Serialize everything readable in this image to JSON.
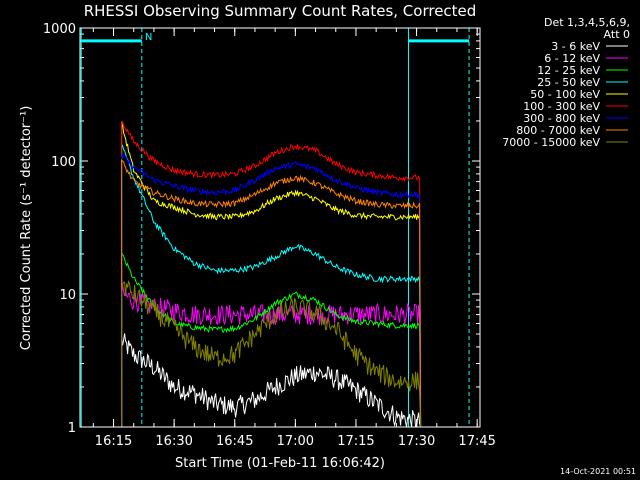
{
  "chart_data": {
    "type": "line",
    "title": "RHESSI Observing Summary Count Rates, Corrected",
    "xlabel": "Start Time (01-Feb-11 16:06:42)",
    "ylabel": "Corrected Count Rate (s⁻¹ detector⁻¹)",
    "yscale": "log",
    "ylim": [
      1,
      1000
    ],
    "xlim_minutes_after_start": [
      0,
      99
    ],
    "x_tick_labels": [
      "16:15",
      "16:30",
      "16:45",
      "17:00",
      "17:15",
      "17:30",
      "17:45"
    ],
    "y_tick_labels": [
      "1",
      "10",
      "100",
      "1000"
    ],
    "legend_header": [
      "Det 1,3,4,5,6,9,",
      "Att 0"
    ],
    "legend_placement": "right, outside plot",
    "data_start_time": "16:17",
    "data_end_time": "17:31",
    "markers": {
      "night_label": "N",
      "vertical_lines": [
        "16:07",
        "16:22",
        "17:28",
        "17:43"
      ],
      "horizontal_bars": [
        {
          "from": "16:07",
          "to": "16:22",
          "y": 800
        },
        {
          "from": "17:28",
          "to": "17:43",
          "y": 800
        }
      ]
    },
    "times": [
      "16:17",
      "16:20",
      "16:25",
      "16:30",
      "16:35",
      "16:40",
      "16:45",
      "16:50",
      "16:55",
      "17:00",
      "17:05",
      "17:10",
      "17:15",
      "17:20",
      "17:25",
      "17:30"
    ],
    "series": [
      {
        "name": "3 - 6 keV",
        "color": "#ffffff",
        "values": [
          4.5,
          3.5,
          2.8,
          2.0,
          1.8,
          1.5,
          1.4,
          1.6,
          2.0,
          2.4,
          2.6,
          2.3,
          1.9,
          1.5,
          1.2,
          1.1
        ]
      },
      {
        "name": "6 - 12 keV",
        "color": "#ff00ff",
        "values": [
          10,
          9,
          8,
          7.5,
          7,
          7,
          7,
          7,
          7,
          7,
          7,
          7,
          7,
          7,
          7,
          7
        ]
      },
      {
        "name": "12 - 25 keV",
        "color": "#00ff00",
        "values": [
          20,
          13,
          8,
          6,
          5.6,
          5.4,
          5.5,
          6.5,
          8.5,
          10,
          9,
          7,
          6.2,
          6,
          5.8,
          5.8
        ]
      },
      {
        "name": "25 - 50 keV",
        "color": "#00ffff",
        "values": [
          130,
          75,
          35,
          22,
          17,
          15,
          15,
          16,
          19,
          23,
          20,
          16,
          14,
          13,
          13,
          13
        ]
      },
      {
        "name": "50 - 100 keV",
        "color": "#ffff00",
        "values": [
          190,
          85,
          50,
          45,
          40,
          38,
          38,
          42,
          52,
          58,
          52,
          43,
          39,
          38,
          38,
          38
        ]
      },
      {
        "name": "100 - 300 keV",
        "color": "#ff0000",
        "values": [
          200,
          140,
          100,
          85,
          80,
          78,
          80,
          92,
          115,
          130,
          120,
          95,
          82,
          78,
          75,
          75
        ]
      },
      {
        "name": "300 - 800 keV",
        "color": "#0000ff",
        "values": [
          110,
          90,
          72,
          65,
          60,
          58,
          60,
          72,
          88,
          95,
          88,
          72,
          63,
          58,
          56,
          56
        ]
      },
      {
        "name": "800 - 7000 keV",
        "color": "#ff8000",
        "values": [
          100,
          70,
          58,
          52,
          48,
          47,
          48,
          56,
          68,
          75,
          68,
          57,
          50,
          47,
          46,
          46
        ]
      },
      {
        "name": "7000 - 15000 keV",
        "color": "#808000",
        "values": [
          12,
          10,
          7.5,
          5.5,
          4.0,
          3.3,
          3.5,
          5.0,
          7.0,
          8.0,
          7.2,
          5.5,
          3.5,
          2.6,
          2.2,
          2.2
        ]
      }
    ]
  },
  "footer": {
    "timestamp": "14-Oct-2021 00:51"
  }
}
